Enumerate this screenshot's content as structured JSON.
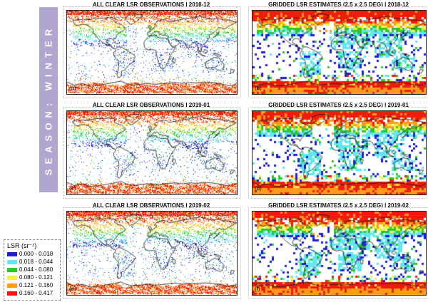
{
  "banner": {
    "text": "SEASON: WINTER",
    "color": "#b1a6cf"
  },
  "panels": [
    {
      "label": "(a)",
      "title": "ALL CLEAR LSR OBSERVATIONS | 2018-12",
      "kind": "observations",
      "month": "2018-12"
    },
    {
      "label": "(b)",
      "title": "GRIDDED LSR ESTIMATES (2.5 x 2.5 DEG) | 2018-12",
      "kind": "gridded",
      "month": "2018-12"
    },
    {
      "label": "(c)",
      "title": "ALL CLEAR LSR OBSERVATIONS | 2019-01",
      "kind": "observations",
      "month": "2019-01"
    },
    {
      "label": "(d)",
      "title": "GRIDDED LSR ESTIMATES (2.5 x 2.5 DEG) | 2019-01",
      "kind": "gridded",
      "month": "2019-01"
    },
    {
      "label": "(e)",
      "title": "ALL CLEAR LSR OBSERVATIONS | 2019-02",
      "kind": "observations",
      "month": "2019-02"
    },
    {
      "label": "(f)",
      "title": "GRIDDED LSR ESTIMATES (2.5 x 2.5 DEG) | 2019-02",
      "kind": "gridded",
      "month": "2019-02"
    }
  ],
  "legend": {
    "title": "LSR (sr⁻¹)",
    "bins": [
      {
        "label": "0.000 - 0.018",
        "color": "#1f1fd8"
      },
      {
        "label": "0.018 - 0.044",
        "color": "#62e6f0"
      },
      {
        "label": "0.044 - 0.080",
        "color": "#2cc72c"
      },
      {
        "label": "0.080 - 0.121",
        "color": "#f2f240"
      },
      {
        "label": "0.121 - 0.160",
        "color": "#ff9a1c"
      },
      {
        "label": "0.160 - 0.417",
        "color": "#ee1c0e"
      }
    ]
  }
}
